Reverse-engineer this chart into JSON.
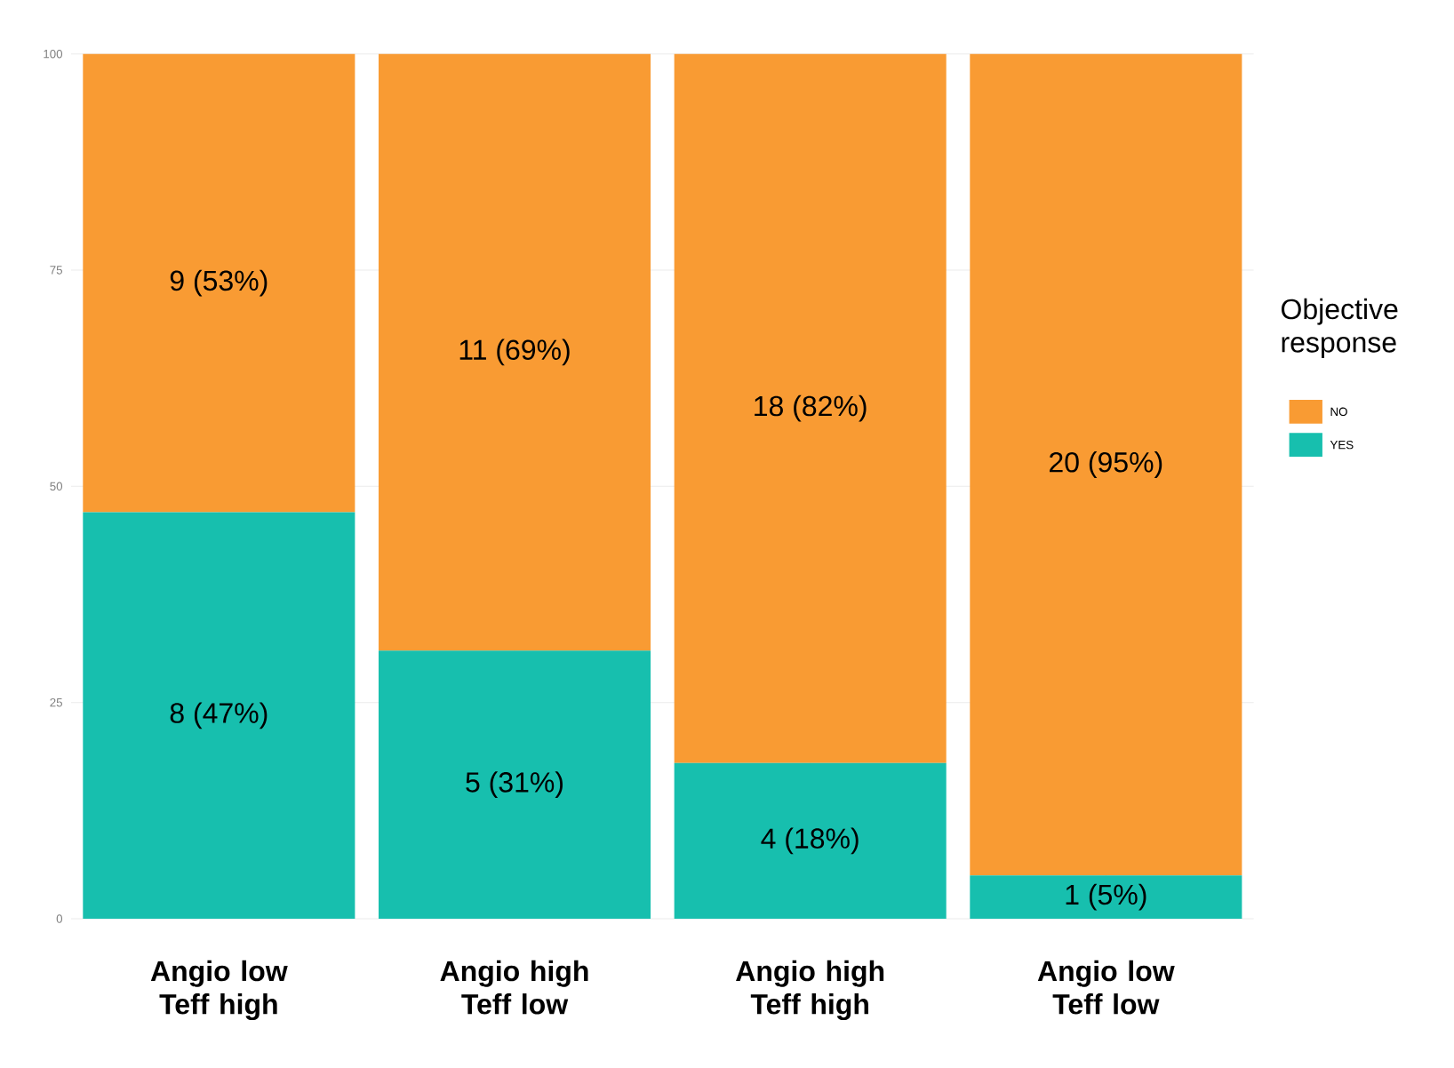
{
  "chart_data": {
    "type": "bar",
    "stacked": true,
    "categories": [
      "Angio low Teff high",
      "Angio high Teff low",
      "Angio high Teff high",
      "Angio low Teff low"
    ],
    "series": [
      {
        "name": "YES",
        "color": "#17bfae",
        "values": [
          47,
          31,
          18,
          5
        ],
        "value_labels": [
          "8 (47%)",
          "5 (31%)",
          "4 (18%)",
          "1 (5%)"
        ]
      },
      {
        "name": "NO",
        "color": "#f99b33",
        "values": [
          53,
          69,
          82,
          95
        ],
        "value_labels": [
          "9 (53%)",
          "11 (69%)",
          "18 (82%)",
          "20 (95%)"
        ]
      }
    ],
    "ylim": [
      0,
      100
    ],
    "yticks": [
      0,
      25,
      50,
      75,
      100
    ],
    "grid": true,
    "legend": "right",
    "legend_title": "Objective response"
  }
}
